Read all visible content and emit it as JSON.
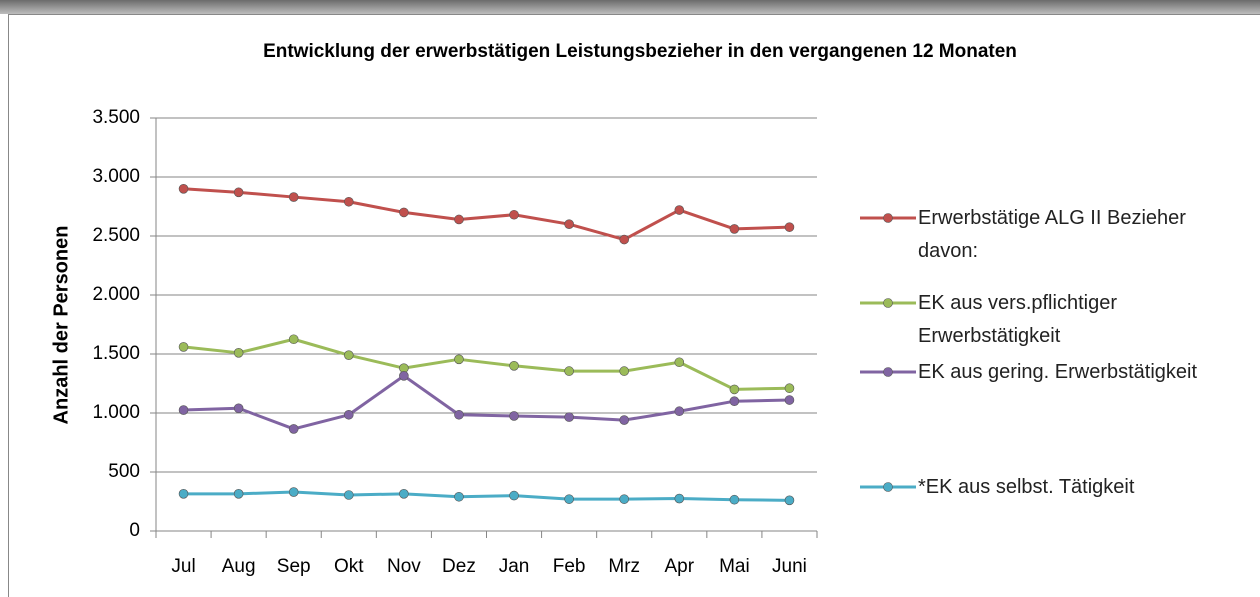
{
  "chart_data": {
    "type": "line",
    "title": "Entwicklung der erwerbstätigen Leistungsbezieher in den vergangenen 12 Monaten",
    "y_label": "Anzahl der Personen",
    "categories": [
      "Jul",
      "Aug",
      "Sep",
      "Okt",
      "Nov",
      "Dez",
      "Jan",
      "Feb",
      "Mrz",
      "Apr",
      "Mai",
      "Juni"
    ],
    "ylim": [
      0,
      3500
    ],
    "yticks": [
      0,
      500,
      {
        "value": 1000,
        "label": "1.000"
      },
      {
        "value": 1500,
        "label": "1.500"
      },
      {
        "value": 2000,
        "label": "2.000"
      },
      {
        "value": 2500,
        "label": "2.500"
      },
      {
        "value": 3000,
        "label": "3.000"
      },
      {
        "value": 3500,
        "label": "3.500"
      }
    ],
    "grid": true,
    "legend": "right",
    "series": [
      {
        "name": "Erwerbstätige ALG II Bezieher davon:",
        "color": "#c0504d",
        "values": [
          2900,
          2870,
          2830,
          2790,
          2700,
          2640,
          2680,
          2600,
          2470,
          2720,
          2560,
          2575
        ]
      },
      {
        "name": "EK aus vers.pflichtiger Erwerbstätigkeit",
        "color": "#9bbb59",
        "values": [
          1560,
          1510,
          1625,
          1490,
          1380,
          1455,
          1400,
          1355,
          1355,
          1430,
          1200,
          1210
        ]
      },
      {
        "name": "EK aus gering. Erwerbstätigkeit",
        "color": "#8064a2",
        "values": [
          1025,
          1040,
          865,
          985,
          1315,
          985,
          975,
          965,
          940,
          1015,
          1100,
          1110
        ]
      },
      {
        "name": "*EK aus selbst. Tätigkeit",
        "color": "#4bacc6",
        "values": [
          315,
          315,
          330,
          305,
          315,
          290,
          300,
          270,
          270,
          275,
          265,
          260
        ]
      }
    ]
  }
}
